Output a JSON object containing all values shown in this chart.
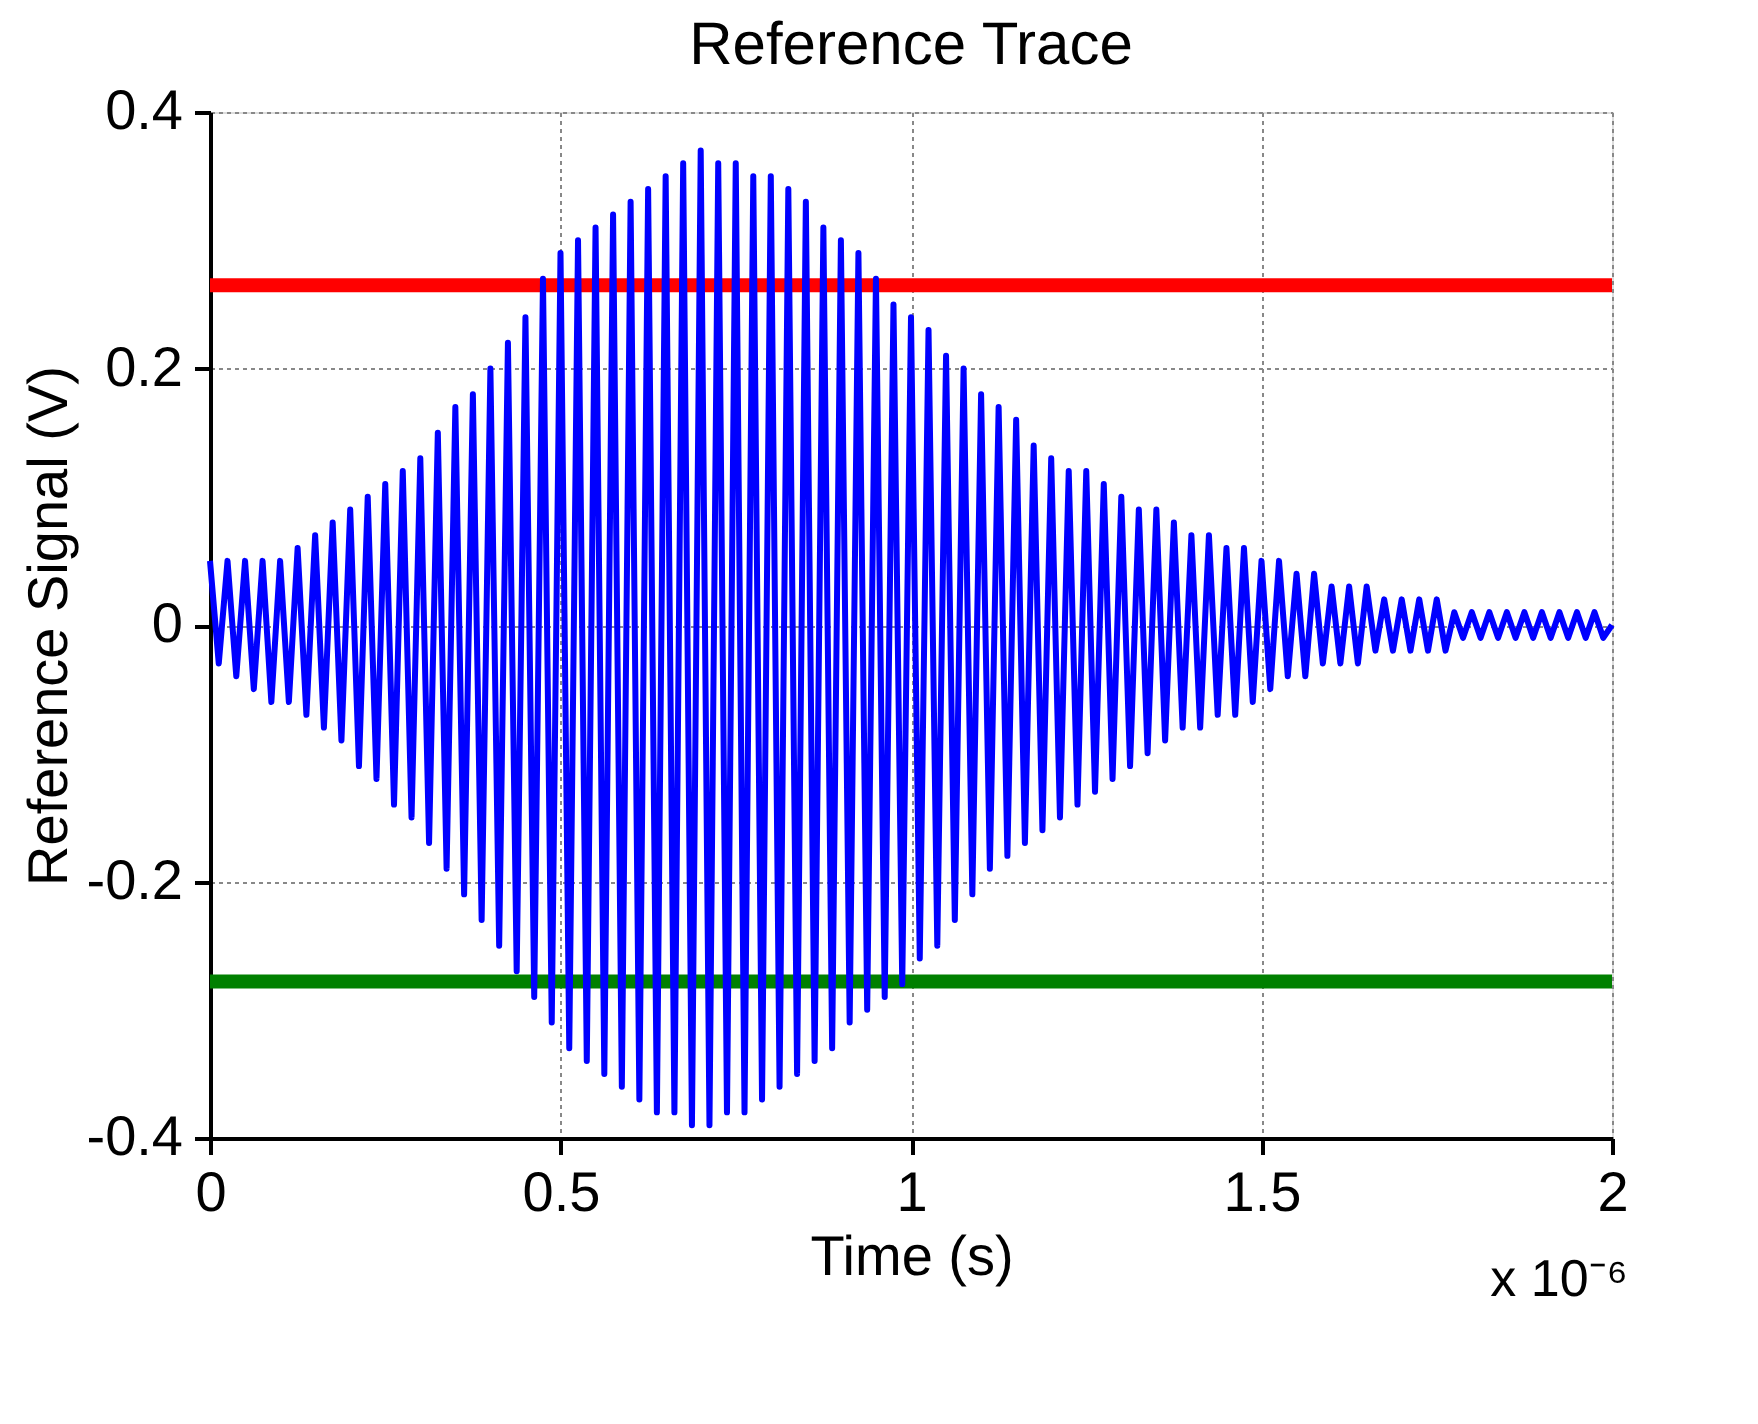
{
  "chart_data": {
    "type": "line",
    "title": "Reference Trace",
    "xlabel": "Time (s)",
    "ylabel": "Reference Signal (V)",
    "annotations": [
      "x 10⁻⁶"
    ],
    "xlim": [
      0,
      2
    ],
    "xticks": [
      0,
      0.5,
      1,
      1.5,
      2
    ],
    "ylim": [
      -0.4,
      0.4
    ],
    "yticks": [
      -0.4,
      -0.2,
      0,
      0.2,
      0.4
    ],
    "grid": true,
    "marker": "none",
    "line_style": "solid",
    "ref_lines": [
      {
        "axis": "y",
        "value": 0.265,
        "color": "#ff0000"
      },
      {
        "axis": "y",
        "value": -0.278,
        "color": "#008000"
      }
    ],
    "series": [
      {
        "color": "#0000ff",
        "x": [
          0,
          0.0125,
          0.025,
          0.0375,
          0.05,
          0.0625,
          0.075,
          0.0875,
          0.1,
          0.1125,
          0.125,
          0.1375,
          0.15,
          0.1625,
          0.175,
          0.1875,
          0.2,
          0.2125,
          0.225,
          0.2375,
          0.25,
          0.2625,
          0.275,
          0.2875,
          0.3,
          0.3125,
          0.325,
          0.3375,
          0.35,
          0.3625,
          0.375,
          0.3875,
          0.4,
          0.4125,
          0.425,
          0.4375,
          0.45,
          0.4625,
          0.475,
          0.4875,
          0.5,
          0.5125,
          0.525,
          0.5375,
          0.55,
          0.5625,
          0.575,
          0.5875,
          0.6,
          0.6125,
          0.625,
          0.6375,
          0.65,
          0.6625,
          0.675,
          0.6875,
          0.7,
          0.7125,
          0.725,
          0.7375,
          0.75,
          0.7625,
          0.775,
          0.7875,
          0.8,
          0.8125,
          0.825,
          0.8375,
          0.85,
          0.8625,
          0.875,
          0.8875,
          0.9,
          0.9125,
          0.925,
          0.9375,
          0.95,
          0.9625,
          0.975,
          0.9875,
          1,
          1.0125,
          1.025,
          1.0375,
          1.05,
          1.0625,
          1.075,
          1.0875,
          1.1,
          1.1125,
          1.125,
          1.1375,
          1.15,
          1.1625,
          1.175,
          1.1875,
          1.2,
          1.2125,
          1.225,
          1.2375,
          1.25,
          1.2625,
          1.275,
          1.2875,
          1.3,
          1.3125,
          1.325,
          1.3375,
          1.35,
          1.3625,
          1.375,
          1.3875,
          1.4,
          1.4125,
          1.425,
          1.4375,
          1.45,
          1.4625,
          1.475,
          1.4875,
          1.5,
          1.5125,
          1.525,
          1.5375,
          1.55,
          1.5625,
          1.575,
          1.5875,
          1.6,
          1.6125,
          1.625,
          1.6375,
          1.65,
          1.6625,
          1.675,
          1.6875,
          1.7,
          1.7125,
          1.725,
          1.7375,
          1.75,
          1.7625,
          1.775,
          1.7875,
          1.8,
          1.8125,
          1.825,
          1.8375,
          1.85,
          1.8625,
          1.875,
          1.8875,
          1.9,
          1.9125,
          1.925,
          1.9375,
          1.95,
          1.9625,
          1.975,
          1.9875,
          2
        ],
        "values": [
          0.05,
          -0.03,
          0.05,
          -0.04,
          0.05,
          -0.05,
          0.05,
          -0.06,
          0.05,
          -0.06,
          0.06,
          -0.07,
          0.07,
          -0.08,
          0.08,
          -0.09,
          0.09,
          -0.11,
          0.1,
          -0.12,
          0.11,
          -0.14,
          0.12,
          -0.15,
          0.13,
          -0.17,
          0.15,
          -0.19,
          0.17,
          -0.21,
          0.18,
          -0.23,
          0.2,
          -0.25,
          0.22,
          -0.27,
          0.24,
          -0.29,
          0.27,
          -0.31,
          0.29,
          -0.33,
          0.3,
          -0.34,
          0.31,
          -0.35,
          0.32,
          -0.36,
          0.33,
          -0.37,
          0.34,
          -0.38,
          0.35,
          -0.38,
          0.36,
          -0.39,
          0.37,
          -0.39,
          0.36,
          -0.38,
          0.36,
          -0.38,
          0.35,
          -0.37,
          0.35,
          -0.36,
          0.34,
          -0.35,
          0.33,
          -0.34,
          0.31,
          -0.33,
          0.3,
          -0.31,
          0.29,
          -0.3,
          0.27,
          -0.29,
          0.25,
          -0.28,
          0.24,
          -0.26,
          0.23,
          -0.25,
          0.21,
          -0.23,
          0.2,
          -0.21,
          0.18,
          -0.19,
          0.17,
          -0.18,
          0.16,
          -0.17,
          0.14,
          -0.16,
          0.13,
          -0.15,
          0.12,
          -0.14,
          0.12,
          -0.13,
          0.11,
          -0.12,
          0.1,
          -0.11,
          0.09,
          -0.1,
          0.09,
          -0.09,
          0.08,
          -0.08,
          0.07,
          -0.08,
          0.07,
          -0.07,
          0.06,
          -0.07,
          0.06,
          -0.06,
          0.05,
          -0.05,
          0.05,
          -0.04,
          0.04,
          -0.04,
          0.04,
          -0.03,
          0.03,
          -0.03,
          0.03,
          -0.03,
          0.03,
          -0.02,
          0.02,
          -0.02,
          0.02,
          -0.02,
          0.02,
          -0.02,
          0.02,
          -0.02,
          0.01,
          -0.01,
          0.01,
          -0.01,
          0.01,
          -0.01,
          0.01,
          -0.01,
          0.01,
          -0.01,
          0.01,
          -0.01,
          0.01,
          -0.01,
          0.01,
          -0.01,
          0.01,
          -0.01,
          0
        ]
      }
    ]
  }
}
